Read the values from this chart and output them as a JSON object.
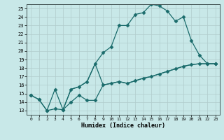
{
  "xlabel": "Humidex (Indice chaleur)",
  "bg_color": "#c8e8e8",
  "grid_color": "#b0cccc",
  "line_color": "#1a6b6b",
  "xlim": [
    -0.5,
    23.5
  ],
  "ylim": [
    12.5,
    25.5
  ],
  "xticks": [
    0,
    1,
    2,
    3,
    4,
    5,
    6,
    7,
    8,
    9,
    10,
    11,
    12,
    13,
    14,
    15,
    16,
    17,
    18,
    19,
    20,
    21,
    22,
    23
  ],
  "yticks": [
    13,
    14,
    15,
    16,
    17,
    18,
    19,
    20,
    21,
    22,
    23,
    24,
    25
  ],
  "line1_x": [
    0,
    1,
    2,
    3,
    4,
    5,
    6,
    7,
    8,
    9,
    10,
    11,
    12,
    13,
    14,
    15,
    16,
    17,
    18,
    19,
    20,
    21,
    22,
    23
  ],
  "line1_y": [
    14.8,
    14.3,
    13.0,
    15.5,
    13.1,
    15.5,
    15.8,
    16.4,
    18.5,
    19.8,
    20.5,
    23.0,
    23.0,
    24.3,
    24.5,
    25.5,
    25.3,
    24.7,
    23.5,
    24.0,
    21.2,
    19.5,
    18.5,
    18.5
  ],
  "line2_x": [
    0,
    1,
    2,
    3,
    4,
    5,
    6,
    7,
    8,
    9,
    10,
    11,
    12,
    13,
    14,
    15,
    16,
    17,
    18,
    19,
    20,
    21,
    22,
    23
  ],
  "line2_y": [
    14.8,
    14.3,
    13.0,
    13.2,
    13.1,
    14.0,
    14.8,
    14.2,
    14.2,
    16.0,
    16.2,
    16.4,
    16.2,
    16.5,
    16.8,
    17.0,
    17.3,
    17.6,
    17.9,
    18.2,
    18.4,
    18.5,
    18.5,
    18.5
  ],
  "line3_x": [
    4,
    5,
    6,
    7,
    8,
    9,
    10,
    11,
    12,
    13,
    14,
    15,
    16,
    17,
    18,
    19,
    20,
    21,
    22,
    23
  ],
  "line3_y": [
    13.1,
    15.5,
    15.8,
    16.4,
    18.5,
    16.0,
    16.2,
    16.4,
    16.2,
    16.5,
    16.8,
    17.0,
    17.3,
    17.6,
    17.9,
    18.2,
    18.4,
    18.5,
    18.5,
    18.5
  ]
}
